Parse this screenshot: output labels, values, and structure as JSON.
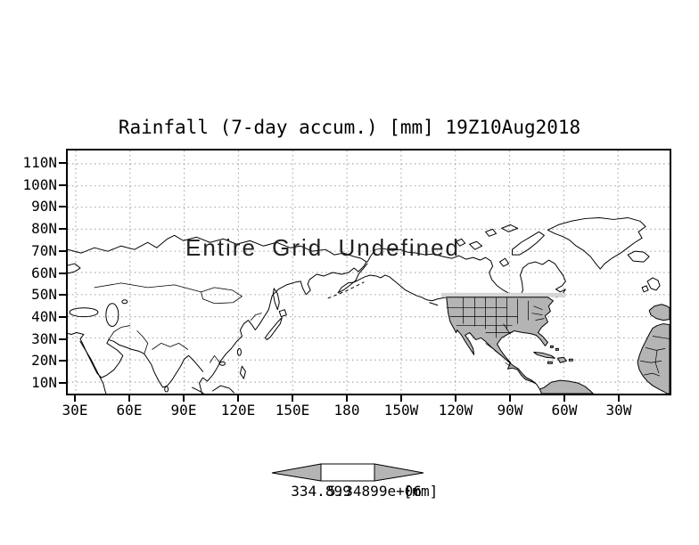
{
  "title": "Rainfall (7-day accum.) [mm] 19Z10Aug2018",
  "map": {
    "overlay_message": "Entire Grid Undefined",
    "lat_labels": [
      "110N",
      "100N",
      "90N",
      "80N",
      "70N",
      "60N",
      "50N",
      "40N",
      "30N",
      "20N",
      "10N"
    ],
    "lon_labels": [
      "30E",
      "60E",
      "90E",
      "120E",
      "150E",
      "180",
      "150W",
      "120W",
      "90W",
      "60W",
      "30W"
    ]
  },
  "colorbar": {
    "min_label": "334.899",
    "max_label": "5.34899e+06",
    "units_label": "[mm]"
  },
  "colors": {
    "land_fill": "#b4b4b4",
    "highlight_band": "#d6d6d6",
    "grid_dots": "#a9a9a9",
    "frame": "#000000"
  }
}
